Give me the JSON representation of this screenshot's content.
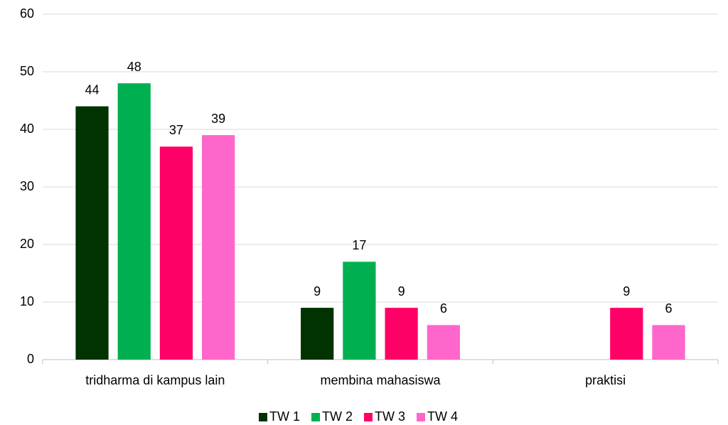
{
  "chart_data": {
    "type": "bar",
    "categories": [
      "tridharma di kampus lain",
      "membina mahasiswa",
      "praktisi"
    ],
    "series": [
      {
        "name": "TW 1",
        "color": "#003300",
        "values": [
          44,
          9,
          null
        ]
      },
      {
        "name": "TW 2",
        "color": "#00b050",
        "values": [
          48,
          17,
          null
        ]
      },
      {
        "name": "TW 3",
        "color": "#ff0066",
        "values": [
          37,
          9,
          9
        ]
      },
      {
        "name": "TW 4",
        "color": "#ff66cc",
        "values": [
          39,
          6,
          6
        ]
      }
    ],
    "ylim": [
      0,
      60
    ],
    "yticks": [
      0,
      10,
      20,
      30,
      40,
      50,
      60
    ],
    "grid": true,
    "legend": "bottom"
  }
}
